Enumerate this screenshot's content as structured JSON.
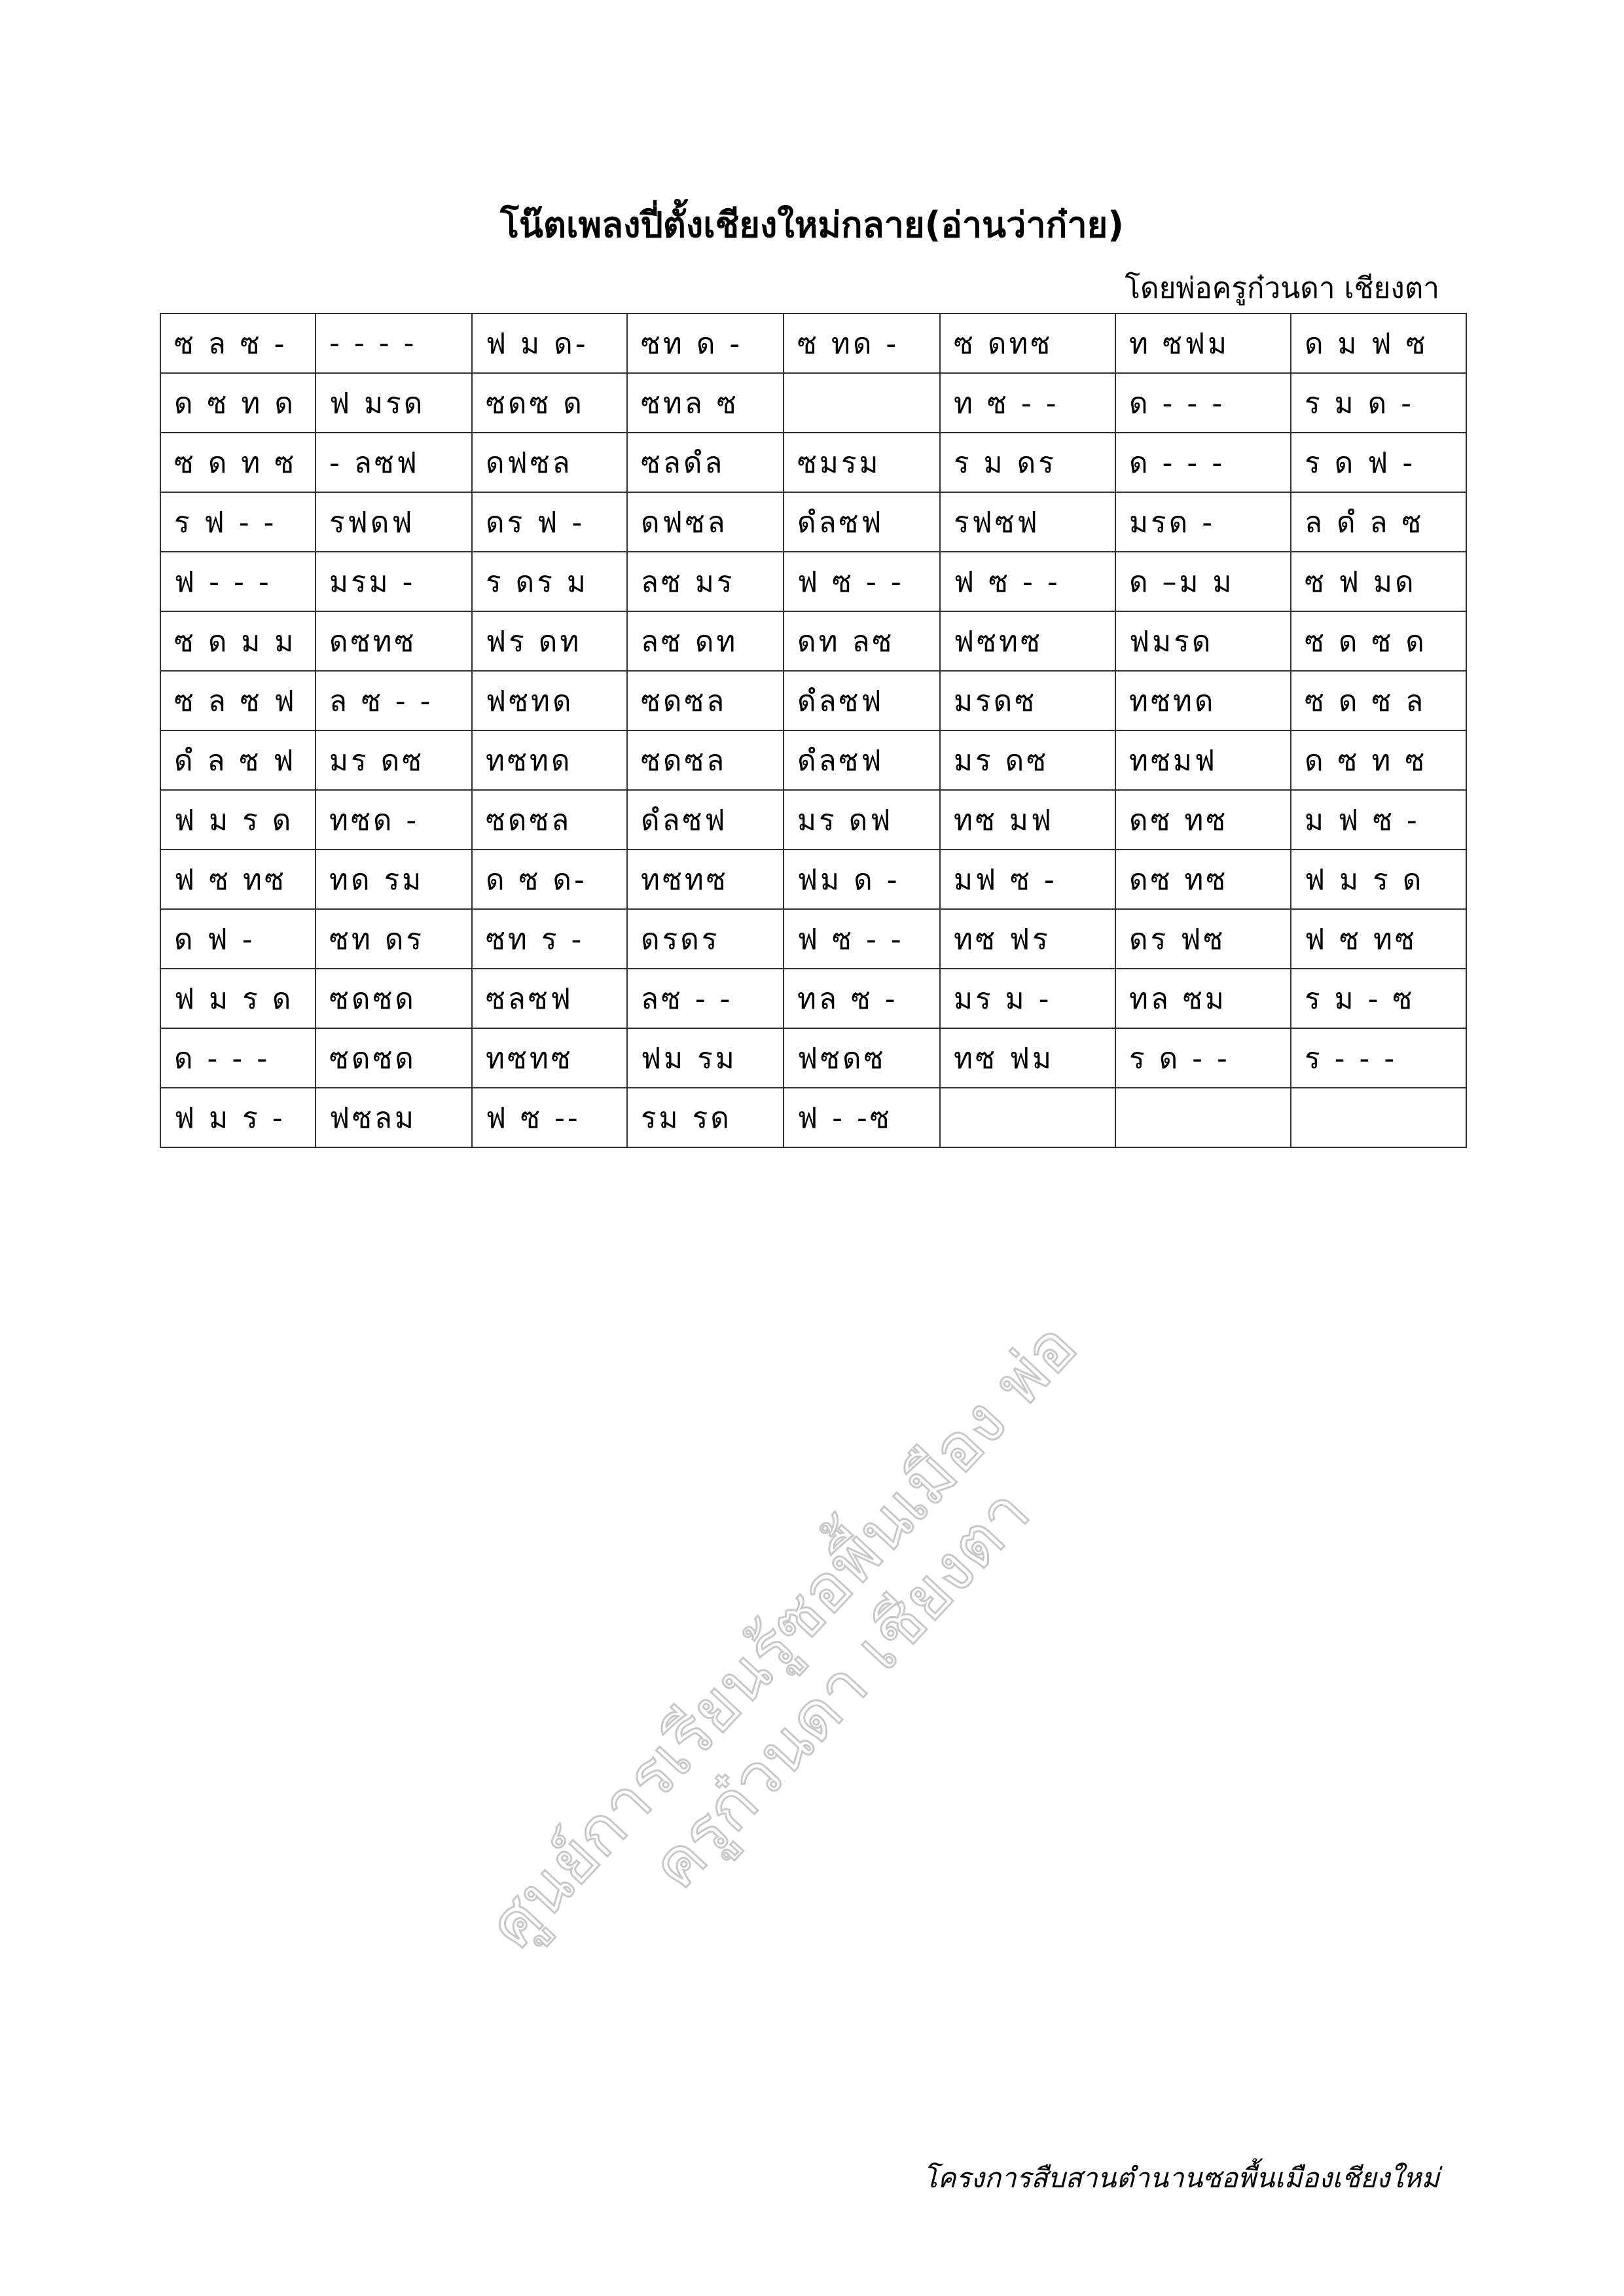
{
  "document": {
    "title": "โน๊ตเพลงปี่ตั้งเชียงใหม่กลาย(อ่านว่าก๋าย)",
    "author": "โดยพ่อครูก๋วนดา เชียงตา",
    "footer": "โครงการสืบสานตำนานซอพื้นเมืองเชียงใหม่",
    "watermark": "ศูนย์การเรียนรู้ซอพื้นเมือง พ่อครูก๋วนดา เชียงตา"
  },
  "notation_table": {
    "rows": [
      [
        "ซ ล ซ -",
        "- - - -",
        "ฟ ม ด-",
        "ซท ด -",
        "ซ ทด -",
        "ซ ดทซ",
        "ท ซฟม",
        "ด ม ฟ ซ"
      ],
      [
        "ด ซ ท ด",
        "ฟ มรด",
        "ซดซ ด",
        "ซทล ซ",
        "",
        "ท ซ - -",
        "ด - - -",
        "ร ม ด -"
      ],
      [
        "ซ ด ท ซ",
        "- ลซฟ",
        "ดฟซล",
        "ซลดํล",
        "ซมรม",
        "ร ม ดร",
        "ด - - -",
        "ร ด ฟ -"
      ],
      [
        "ร ฟ - -",
        "รฟดฟ",
        "ดร ฟ -",
        "ดฟซล",
        "ดํลซฟ",
        "รฟซฟ",
        "มรด -",
        "ล ดํ ล ซ"
      ],
      [
        "ฟ - - -",
        "มรม -",
        "ร ดร ม",
        "ลซ มร",
        "ฟ ซ - -",
        "ฟ ซ - -",
        "ด –ม ม",
        "ซ ฟ มด"
      ],
      [
        "ซ ด ม ม",
        "ดซทซ",
        "ฟร ดท",
        "ลซ ดท",
        "ดท ลซ",
        "ฟซทซ",
        "ฟมรด",
        "ซ ด ซ ด"
      ],
      [
        "ซ ล ซ ฟ",
        "ล ซ - -",
        "ฟซทด",
        "ซดซล",
        "ดํลซฟ",
        "มรดซ",
        "ทซทด",
        "ซ ด ซ ล"
      ],
      [
        "ดํ ล ซ ฟ",
        "มร ดซ",
        "ทซทด",
        "ซดซล",
        "ดํลซฟ",
        "มร ดซ",
        "ทซมฟ",
        "ด ซ ท ซ"
      ],
      [
        "ฟ ม ร ด",
        "ทซด -",
        "ซดซล",
        "ดํลซฟ",
        "มร ดฟ",
        "ทซ มฟ",
        "ดซ ทซ",
        "ม ฟ ซ -"
      ],
      [
        "ฟ ซ ทซ",
        "ทด รม",
        "ด ซ ด-",
        "ทซทซ",
        "ฟม ด -",
        "มฟ ซ -",
        "ดซ ทซ",
        "ฟ ม ร ด"
      ],
      [
        "ด ฟ -",
        "ซท ดร",
        "ซท ร -",
        "ดรดร",
        "ฟ ซ - -",
        "ทซ ฟร",
        "ดร ฟซ",
        "ฟ ซ ทซ"
      ],
      [
        "ฟ ม ร ด",
        "ซดซด",
        "ซลซฟ",
        "ลซ - -",
        "ทล ซ -",
        "มร ม -",
        "ทล ซม",
        "ร ม - ซ"
      ],
      [
        "ด - - -",
        "ซดซด",
        "ทซทซ",
        "ฟม รม",
        "ฟซดซ",
        "ทซ ฟม",
        "ร ด - -",
        "ร - - -"
      ],
      [
        "ฟ ม ร -",
        "ฟซลม",
        "ฟ ซ --",
        "รม รด",
        "ฟ - -ซ",
        "",
        "",
        ""
      ]
    ]
  }
}
